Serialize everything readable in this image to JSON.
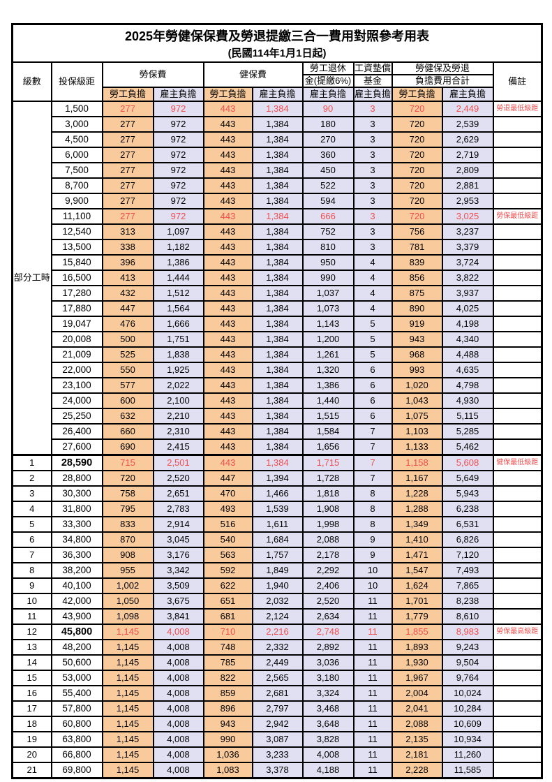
{
  "title": "2025年勞健保保費及勞退提繳三合一費用對照參考用表",
  "subtitle": "(民國114年1月1日起)",
  "colors": {
    "employee_column_bg": "#F9CB9C",
    "employer_column_bg": "#E1DFF2",
    "highlight_red": "#F04E4E",
    "border": "#000000"
  },
  "header": {
    "level": "級數",
    "bracket": "投保級距",
    "labor_insurance": "勞保費",
    "health_insurance": "健保費",
    "pension_line1": "勞工退休",
    "pension_line2": "金(提繳6%)",
    "wage_fund_line1": "工資墊償",
    "wage_fund_line2": "基金",
    "total_line1": "勞健保及勞退",
    "total_line2": "負擔費用合計",
    "remark": "備註",
    "employee_share": "勞工負擔",
    "employer_share": "雇主負擔"
  },
  "part_time": {
    "label": "部分工時",
    "rowspan": 23
  },
  "rows": [
    {
      "level": "",
      "bracket": "1,500",
      "values": [
        "277",
        "972",
        "443",
        "1,384",
        "90",
        "3",
        "720",
        "2,449"
      ],
      "remark": "勞退最低級距",
      "red": true
    },
    {
      "level": "",
      "bracket": "3,000",
      "values": [
        "277",
        "972",
        "443",
        "1,384",
        "180",
        "3",
        "720",
        "2,539"
      ],
      "remark": ""
    },
    {
      "level": "",
      "bracket": "4,500",
      "values": [
        "277",
        "972",
        "443",
        "1,384",
        "270",
        "3",
        "720",
        "2,629"
      ],
      "remark": ""
    },
    {
      "level": "",
      "bracket": "6,000",
      "values": [
        "277",
        "972",
        "443",
        "1,384",
        "360",
        "3",
        "720",
        "2,719"
      ],
      "remark": ""
    },
    {
      "level": "",
      "bracket": "7,500",
      "values": [
        "277",
        "972",
        "443",
        "1,384",
        "450",
        "3",
        "720",
        "2,809"
      ],
      "remark": ""
    },
    {
      "level": "",
      "bracket": "8,700",
      "values": [
        "277",
        "972",
        "443",
        "1,384",
        "522",
        "3",
        "720",
        "2,881"
      ],
      "remark": ""
    },
    {
      "level": "",
      "bracket": "9,900",
      "values": [
        "277",
        "972",
        "443",
        "1,384",
        "594",
        "3",
        "720",
        "2,953"
      ],
      "remark": ""
    },
    {
      "level": "",
      "bracket": "11,100",
      "values": [
        "277",
        "972",
        "443",
        "1,384",
        "666",
        "3",
        "720",
        "3,025"
      ],
      "remark": "勞保最低級距",
      "red": true
    },
    {
      "level": "",
      "bracket": "12,540",
      "values": [
        "313",
        "1,097",
        "443",
        "1,384",
        "752",
        "3",
        "756",
        "3,237"
      ],
      "remark": ""
    },
    {
      "level": "",
      "bracket": "13,500",
      "values": [
        "338",
        "1,182",
        "443",
        "1,384",
        "810",
        "3",
        "781",
        "3,379"
      ],
      "remark": ""
    },
    {
      "level": "",
      "bracket": "15,840",
      "values": [
        "396",
        "1,386",
        "443",
        "1,384",
        "950",
        "4",
        "839",
        "3,724"
      ],
      "remark": ""
    },
    {
      "level": "",
      "bracket": "16,500",
      "values": [
        "413",
        "1,444",
        "443",
        "1,384",
        "990",
        "4",
        "856",
        "3,822"
      ],
      "remark": ""
    },
    {
      "level": "",
      "bracket": "17,280",
      "values": [
        "432",
        "1,512",
        "443",
        "1,384",
        "1,037",
        "4",
        "875",
        "3,937"
      ],
      "remark": ""
    },
    {
      "level": "",
      "bracket": "17,880",
      "values": [
        "447",
        "1,564",
        "443",
        "1,384",
        "1,073",
        "4",
        "890",
        "4,025"
      ],
      "remark": ""
    },
    {
      "level": "",
      "bracket": "19,047",
      "values": [
        "476",
        "1,666",
        "443",
        "1,384",
        "1,143",
        "5",
        "919",
        "4,198"
      ],
      "remark": ""
    },
    {
      "level": "",
      "bracket": "20,008",
      "values": [
        "500",
        "1,751",
        "443",
        "1,384",
        "1,200",
        "5",
        "943",
        "4,340"
      ],
      "remark": ""
    },
    {
      "level": "",
      "bracket": "21,009",
      "values": [
        "525",
        "1,838",
        "443",
        "1,384",
        "1,261",
        "5",
        "968",
        "4,488"
      ],
      "remark": ""
    },
    {
      "level": "",
      "bracket": "22,000",
      "values": [
        "550",
        "1,925",
        "443",
        "1,384",
        "1,320",
        "6",
        "993",
        "4,635"
      ],
      "remark": ""
    },
    {
      "level": "",
      "bracket": "23,100",
      "values": [
        "577",
        "2,022",
        "443",
        "1,384",
        "1,386",
        "6",
        "1,020",
        "4,798"
      ],
      "remark": ""
    },
    {
      "level": "",
      "bracket": "24,000",
      "values": [
        "600",
        "2,100",
        "443",
        "1,384",
        "1,440",
        "6",
        "1,043",
        "4,930"
      ],
      "remark": ""
    },
    {
      "level": "",
      "bracket": "25,250",
      "values": [
        "632",
        "2,210",
        "443",
        "1,384",
        "1,515",
        "6",
        "1,075",
        "5,115"
      ],
      "remark": ""
    },
    {
      "level": "",
      "bracket": "26,400",
      "values": [
        "660",
        "2,310",
        "443",
        "1,384",
        "1,584",
        "7",
        "1,103",
        "5,285"
      ],
      "remark": ""
    },
    {
      "level": "",
      "bracket": "27,600",
      "values": [
        "690",
        "2,415",
        "443",
        "1,384",
        "1,656",
        "7",
        "1,133",
        "5,462"
      ],
      "remark": ""
    },
    {
      "level": "1",
      "bracket": "28,590",
      "values": [
        "715",
        "2,501",
        "443",
        "1,384",
        "1,715",
        "7",
        "1,158",
        "5,608"
      ],
      "remark": "健保最低級距",
      "red": true,
      "bold": true,
      "thick": true
    },
    {
      "level": "2",
      "bracket": "28,800",
      "values": [
        "720",
        "2,520",
        "447",
        "1,394",
        "1,728",
        "7",
        "1,167",
        "5,649"
      ],
      "remark": ""
    },
    {
      "level": "3",
      "bracket": "30,300",
      "values": [
        "758",
        "2,651",
        "470",
        "1,466",
        "1,818",
        "8",
        "1,228",
        "5,943"
      ],
      "remark": ""
    },
    {
      "level": "4",
      "bracket": "31,800",
      "values": [
        "795",
        "2,783",
        "493",
        "1,539",
        "1,908",
        "8",
        "1,288",
        "6,238"
      ],
      "remark": ""
    },
    {
      "level": "5",
      "bracket": "33,300",
      "values": [
        "833",
        "2,914",
        "516",
        "1,611",
        "1,998",
        "8",
        "1,349",
        "6,531"
      ],
      "remark": ""
    },
    {
      "level": "6",
      "bracket": "34,800",
      "values": [
        "870",
        "3,045",
        "540",
        "1,684",
        "2,088",
        "9",
        "1,410",
        "6,826"
      ],
      "remark": ""
    },
    {
      "level": "7",
      "bracket": "36,300",
      "values": [
        "908",
        "3,176",
        "563",
        "1,757",
        "2,178",
        "9",
        "1,471",
        "7,120"
      ],
      "remark": ""
    },
    {
      "level": "8",
      "bracket": "38,200",
      "values": [
        "955",
        "3,342",
        "592",
        "1,849",
        "2,292",
        "10",
        "1,547",
        "7,493"
      ],
      "remark": ""
    },
    {
      "level": "9",
      "bracket": "40,100",
      "values": [
        "1,002",
        "3,509",
        "622",
        "1,940",
        "2,406",
        "10",
        "1,624",
        "7,865"
      ],
      "remark": ""
    },
    {
      "level": "10",
      "bracket": "42,000",
      "values": [
        "1,050",
        "3,675",
        "651",
        "2,032",
        "2,520",
        "11",
        "1,701",
        "8,238"
      ],
      "remark": ""
    },
    {
      "level": "11",
      "bracket": "43,900",
      "values": [
        "1,098",
        "3,841",
        "681",
        "2,124",
        "2,634",
        "11",
        "1,779",
        "8,610"
      ],
      "remark": ""
    },
    {
      "level": "12",
      "bracket": "45,800",
      "values": [
        "1,145",
        "4,008",
        "710",
        "2,216",
        "2,748",
        "11",
        "1,855",
        "8,983"
      ],
      "remark": "勞保最高級距",
      "red": true,
      "bold": true
    },
    {
      "level": "13",
      "bracket": "48,200",
      "values": [
        "1,145",
        "4,008",
        "748",
        "2,332",
        "2,892",
        "11",
        "1,893",
        "9,243"
      ],
      "remark": ""
    },
    {
      "level": "14",
      "bracket": "50,600",
      "values": [
        "1,145",
        "4,008",
        "785",
        "2,449",
        "3,036",
        "11",
        "1,930",
        "9,504"
      ],
      "remark": ""
    },
    {
      "level": "15",
      "bracket": "53,000",
      "values": [
        "1,145",
        "4,008",
        "822",
        "2,565",
        "3,180",
        "11",
        "1,967",
        "9,764"
      ],
      "remark": ""
    },
    {
      "level": "16",
      "bracket": "55,400",
      "values": [
        "1,145",
        "4,008",
        "859",
        "2,681",
        "3,324",
        "11",
        "2,004",
        "10,024"
      ],
      "remark": ""
    },
    {
      "level": "17",
      "bracket": "57,800",
      "values": [
        "1,145",
        "4,008",
        "896",
        "2,797",
        "3,468",
        "11",
        "2,041",
        "10,284"
      ],
      "remark": ""
    },
    {
      "level": "18",
      "bracket": "60,800",
      "values": [
        "1,145",
        "4,008",
        "943",
        "2,942",
        "3,648",
        "11",
        "2,088",
        "10,609"
      ],
      "remark": ""
    },
    {
      "level": "19",
      "bracket": "63,800",
      "values": [
        "1,145",
        "4,008",
        "990",
        "3,087",
        "3,828",
        "11",
        "2,135",
        "10,934"
      ],
      "remark": ""
    },
    {
      "level": "20",
      "bracket": "66,800",
      "values": [
        "1,145",
        "4,008",
        "1,036",
        "3,233",
        "4,008",
        "11",
        "2,181",
        "11,260"
      ],
      "remark": ""
    },
    {
      "level": "21",
      "bracket": "69,800",
      "values": [
        "1,145",
        "4,008",
        "1,083",
        "3,378",
        "4,188",
        "11",
        "2,228",
        "11,585"
      ],
      "remark": ""
    }
  ]
}
